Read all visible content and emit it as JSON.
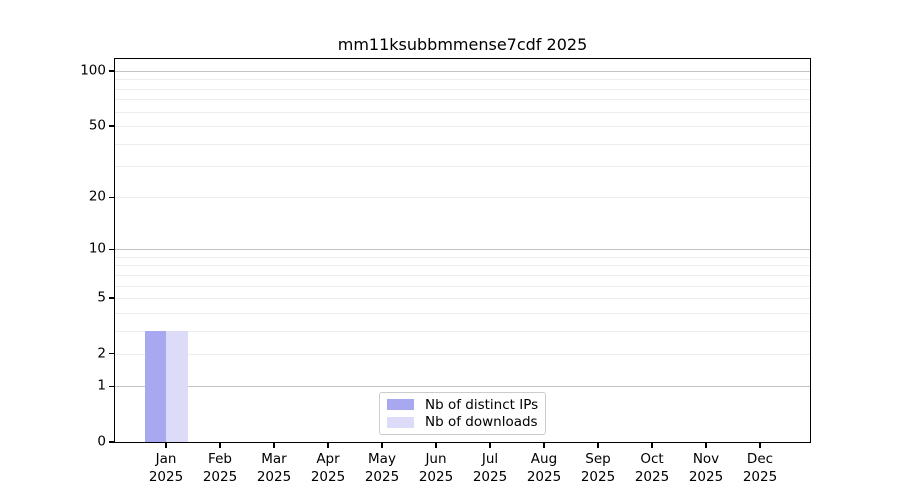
{
  "chart_data": {
    "type": "bar",
    "title": "mm11ksubbmmense7cdf 2025",
    "months": [
      "Jan",
      "Feb",
      "Mar",
      "Apr",
      "May",
      "Jun",
      "Jul",
      "Aug",
      "Sep",
      "Oct",
      "Nov",
      "Dec"
    ],
    "year_label": "2025",
    "categories": [
      "Jan 2025",
      "Feb 2025",
      "Mar 2025",
      "Apr 2025",
      "May 2025",
      "Jun 2025",
      "Jul 2025",
      "Aug 2025",
      "Sep 2025",
      "Oct 2025",
      "Nov 2025",
      "Dec 2025"
    ],
    "series": [
      {
        "name": "Nb of distinct IPs",
        "color": "#a8a8f0",
        "values": [
          3,
          0,
          0,
          0,
          0,
          0,
          0,
          0,
          0,
          0,
          0,
          0
        ]
      },
      {
        "name": "Nb of downloads",
        "color": "#dcdcf8",
        "values": [
          3,
          0,
          0,
          0,
          0,
          0,
          0,
          0,
          0,
          0,
          0,
          0
        ]
      }
    ],
    "y_axis": {
      "scale": "log1p",
      "tick_values": [
        0,
        1,
        2,
        5,
        10,
        20,
        50,
        100
      ],
      "tick_labels": [
        "0",
        "1",
        "2",
        "5",
        "10",
        "20",
        "50",
        "100"
      ],
      "major_grid_values": [
        1,
        10,
        100
      ],
      "minor_grid_values": [
        2,
        3,
        4,
        5,
        6,
        7,
        8,
        9,
        20,
        30,
        40,
        50,
        60,
        70,
        80,
        90
      ],
      "max": 100
    },
    "grid": true,
    "legend_position": "bottom-center",
    "colors": {
      "bar_distinct_ips": "#a8a8f0",
      "bar_downloads": "#dcdcf8",
      "grid_major": "#c4c4c4",
      "grid_minor": "#ececec",
      "axis": "#000000",
      "legend_border": "#cccccc"
    }
  }
}
